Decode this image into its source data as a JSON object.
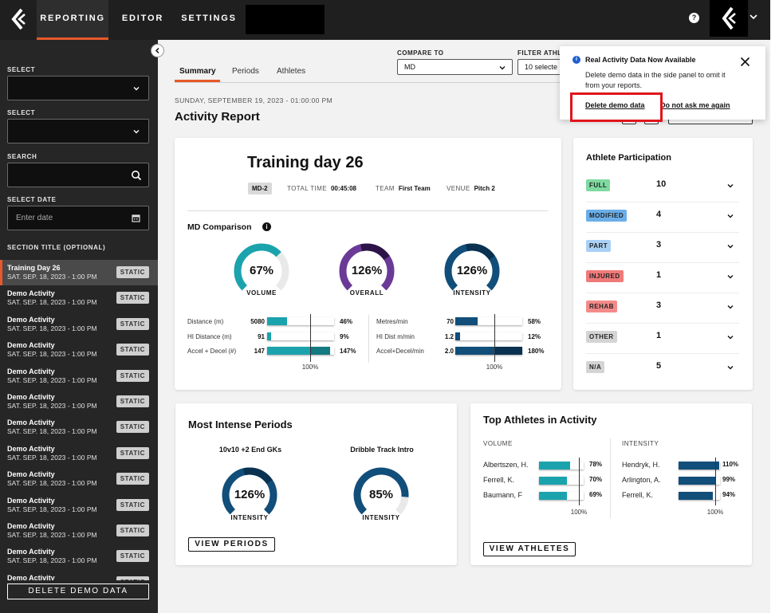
{
  "nav": {
    "tabs": [
      "REPORTING",
      "EDITOR",
      "SETTINGS"
    ],
    "active_tab": "REPORTING",
    "help": "?"
  },
  "sidebar": {
    "select1_label": "SELECT",
    "select2_label": "SELECT",
    "search_label": "SEARCH",
    "date_label": "SELECT DATE",
    "date_placeholder": "Enter date",
    "section_title": "SECTION TITLE (OPTIONAL)",
    "static_label": "STATIC",
    "items": [
      {
        "title": "Training Day 26",
        "date": "SAT. SEP. 18, 2023 - 1:00 PM",
        "active": true
      },
      {
        "title": "Demo Activity",
        "date": "SAT. SEP. 18, 2023 - 1:00 PM"
      },
      {
        "title": "Demo Activity",
        "date": "SAT. SEP. 18, 2023 - 1:00 PM"
      },
      {
        "title": "Demo Activity",
        "date": "SAT. SEP. 18, 2023 - 1:00 PM"
      },
      {
        "title": "Demo Activity",
        "date": "SAT. SEP. 18, 2023 - 1:00 PM"
      },
      {
        "title": "Demo Activity",
        "date": "SAT. SEP. 18, 2023 - 1:00 PM"
      },
      {
        "title": "Demo Activity",
        "date": "SAT. SEP. 18, 2023 - 1:00 PM"
      },
      {
        "title": "Demo Activity",
        "date": "SAT. SEP. 18, 2023 - 1:00 PM"
      },
      {
        "title": "Demo Activity",
        "date": "SAT. SEP. 18, 2023 - 1:00 PM"
      },
      {
        "title": "Demo Activity",
        "date": "SAT. SEP. 18, 2023 - 1:00 PM"
      },
      {
        "title": "Demo Activity",
        "date": "SAT. SEP. 18, 2023 - 1:00 PM"
      },
      {
        "title": "Demo Activity",
        "date": "SAT. SEP. 18, 2023 - 1:00 PM"
      },
      {
        "title": "Demo Activity",
        "date": ""
      }
    ],
    "delete_label": "DELETE DEMO DATA"
  },
  "main": {
    "tabs": [
      "Summary",
      "Periods",
      "Athletes"
    ],
    "compare_label": "COMPARE TO",
    "compare_value": "MD",
    "filter_label": "FILTER ATHL",
    "filter_value": "10 selecte",
    "date_line": "SUNDAY, SEPTEMBER 19, 2023 - 01:00:00 PM",
    "title": "Activity Report"
  },
  "session": {
    "title": "Training day 26",
    "badge": "MD-2",
    "total_time_label": "TOTAL TIME",
    "total_time": "00:45:08",
    "team_label": "TEAM",
    "team": "First Team",
    "venue_label": "VENUE",
    "venue": "Pitch 2"
  },
  "comparison": {
    "title": "MD Comparison",
    "info": "i",
    "gauges": [
      {
        "label": "VOLUME",
        "value": "67%",
        "pct": 67,
        "color": "#1aa3ad",
        "track": "#d8eef0"
      },
      {
        "label": "OVERALL",
        "value": "126%",
        "pct": 126,
        "color": "#6a3a96",
        "track": "#2d1448"
      },
      {
        "label": "INTENSITY",
        "value": "126%",
        "pct": 126,
        "color": "#114e7a",
        "track": "#0a3150"
      }
    ],
    "left_metrics": [
      {
        "name": "Distance (m)",
        "value": "5080",
        "pct_label": "46%",
        "pct": 46
      },
      {
        "name": "HI Distance (m)",
        "value": "91",
        "pct_label": "9%",
        "pct": 9
      },
      {
        "name": "Accel + Decel (#)",
        "value": "147",
        "pct_label": "147%",
        "pct": 147
      }
    ],
    "right_metrics": [
      {
        "name": "Metres/min",
        "value": "70",
        "pct_label": "58%",
        "pct": 58
      },
      {
        "name": "HI Dist m/min",
        "value": "1.2",
        "pct_label": "12%",
        "pct": 12
      },
      {
        "name": "Accel+Decel/min",
        "value": "2.0",
        "pct_label": "180%",
        "pct": 180
      }
    ],
    "ref_label": "100%"
  },
  "participation": {
    "title": "Athlete Participation",
    "rows": [
      {
        "label": "FULL",
        "count": "10",
        "color": "#7fd9a0"
      },
      {
        "label": "MODIFIED",
        "count": "4",
        "color": "#6aaee8"
      },
      {
        "label": "PART",
        "count": "3",
        "color": "#a9d0f5"
      },
      {
        "label": "INJURED",
        "count": "1",
        "color": "#f07a7a"
      },
      {
        "label": "REHAB",
        "count": "3",
        "color": "#f58a8a"
      },
      {
        "label": "OTHER",
        "count": "1",
        "color": "#d4d4d4"
      },
      {
        "label": "N/A",
        "count": "5",
        "color": "#d4d4d4"
      }
    ]
  },
  "periods": {
    "title": "Most Intense Periods",
    "items": [
      {
        "name": "10v10 +2 End GKs",
        "value": "126%",
        "pct": 126,
        "label": "INTENSITY"
      },
      {
        "name": "Dribble Track Intro",
        "value": "85%",
        "pct": 85,
        "label": "INTENSITY"
      }
    ],
    "button": "VIEW PERIODS"
  },
  "top_athletes": {
    "title": "Top Athletes in Activity",
    "volume_label": "VOLUME",
    "intensity_label": "INTENSITY",
    "volume": [
      {
        "name": "Albertszen, H.",
        "pct_label": "78%",
        "pct": 78
      },
      {
        "name": "Ferrell, K.",
        "pct_label": "70%",
        "pct": 70
      },
      {
        "name": "Baumann, F",
        "pct_label": "69%",
        "pct": 69
      }
    ],
    "intensity": [
      {
        "name": "Hendryk, H.",
        "pct_label": "110%",
        "pct": 110
      },
      {
        "name": "Arlington, A.",
        "pct_label": "99%",
        "pct": 99
      },
      {
        "name": "Ferrell, K.",
        "pct_label": "94%",
        "pct": 94
      }
    ],
    "ref_label": "100%",
    "button": "VIEW ATHLETES"
  },
  "notification": {
    "icon": "i",
    "title": "Real Activity Data Now Available",
    "body": "Delete demo data in the side panel to omit it from your reports.",
    "link_delete": "Delete demo data",
    "link_dismiss": "Do not ask me again"
  },
  "colors": {
    "accent": "#e8582a",
    "teal": "#1aa3ad",
    "navy": "#114e7a",
    "highlight": "#e0151b"
  }
}
